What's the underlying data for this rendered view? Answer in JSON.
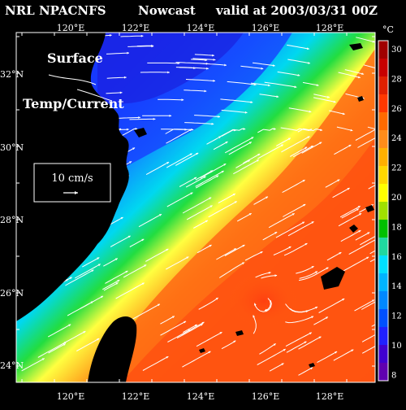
{
  "title": {
    "model": "NRL NPACNFS",
    "product": "Nowcast",
    "valid": "valid at 2003/03/31 00Z"
  },
  "map_labels": {
    "line1": "Surface",
    "line2": "Temp/Current"
  },
  "vector_key": {
    "label": "10 cm/s"
  },
  "lon_ticks": [
    "120°E",
    "122°E",
    "124°E",
    "126°E",
    "128°E"
  ],
  "lat_ticks": [
    "32°N",
    "30°N",
    "28°N",
    "26°N",
    "24°N"
  ],
  "colorbar": {
    "unit": "°C",
    "ticks": [
      "30",
      "28",
      "26",
      "24",
      "22",
      "20",
      "18",
      "16",
      "14",
      "12",
      "10",
      "8"
    ],
    "colors": [
      "#a00000",
      "#c80000",
      "#e02000",
      "#ff3800",
      "#ff6a00",
      "#ff8c1a",
      "#ffb000",
      "#ffd700",
      "#ffff00",
      "#a0e000",
      "#00c000",
      "#20d8a0",
      "#00e0ff",
      "#00b4ff",
      "#0088ff",
      "#0050ff",
      "#2020ff",
      "#4000d0",
      "#6000b0"
    ]
  },
  "colors": {
    "land": "#000000",
    "vectors": "#ffffff",
    "text": "#ffffff"
  }
}
